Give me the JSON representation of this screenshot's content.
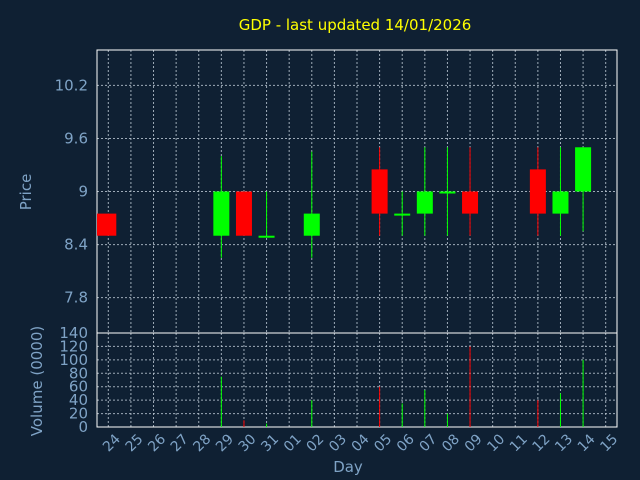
{
  "chart_data": {
    "type": "candlestick",
    "title": "GDP - last updated 14/01/2026",
    "xlabel": "Day",
    "ylabel": "Price",
    "volume_label": "Volume (0000)",
    "days": [
      "24",
      "25",
      "26",
      "27",
      "28",
      "29",
      "30",
      "31",
      "01",
      "02",
      "03",
      "04",
      "05",
      "06",
      "07",
      "08",
      "09",
      "10",
      "11",
      "12",
      "13",
      "14",
      "15"
    ],
    "price_ticks": [
      7.8,
      8.4,
      9,
      9.6,
      10.2
    ],
    "price_tick_labels": [
      "7.8",
      "8.4",
      "9",
      "9.6",
      "10.2"
    ],
    "price_ylim": [
      7.4,
      10.6
    ],
    "volume_ticks": [
      0,
      20,
      40,
      60,
      80,
      100,
      120,
      140
    ],
    "volume_ylim": [
      0,
      140
    ],
    "up_color": "#00ff00",
    "down_color": "#ff0000",
    "candles": [
      {
        "day": "24",
        "open": 8.75,
        "high": 8.75,
        "low": 8.5,
        "close": 8.5,
        "volume": 0
      },
      {
        "day": "29",
        "open": 8.5,
        "high": 9.4,
        "low": 8.25,
        "close": 9.0,
        "volume": 75
      },
      {
        "day": "30",
        "open": 9.0,
        "high": 9.0,
        "low": 8.5,
        "close": 8.5,
        "volume": 10
      },
      {
        "day": "31",
        "open": 8.5,
        "high": 9.0,
        "low": 8.5,
        "close": 8.5,
        "volume": 5
      },
      {
        "day": "02",
        "open": 8.5,
        "high": 9.45,
        "low": 8.25,
        "close": 8.75,
        "volume": 40
      },
      {
        "day": "05",
        "open": 9.25,
        "high": 9.5,
        "low": 8.5,
        "close": 8.75,
        "volume": 60
      },
      {
        "day": "06",
        "open": 8.75,
        "high": 9.0,
        "low": 8.5,
        "close": 8.75,
        "volume": 35
      },
      {
        "day": "07",
        "open": 8.75,
        "high": 9.5,
        "low": 8.5,
        "close": 9.0,
        "volume": 55
      },
      {
        "day": "08",
        "open": 9.0,
        "high": 9.5,
        "low": 8.5,
        "close": 9.0,
        "volume": 20
      },
      {
        "day": "09",
        "open": 9.0,
        "high": 9.5,
        "low": 8.5,
        "close": 8.75,
        "volume": 120
      },
      {
        "day": "12",
        "open": 9.25,
        "high": 9.5,
        "low": 8.5,
        "close": 8.75,
        "volume": 40
      },
      {
        "day": "13",
        "open": 8.75,
        "high": 9.5,
        "low": 8.5,
        "close": 9.0,
        "volume": 50
      },
      {
        "day": "14",
        "open": 9.0,
        "high": 9.5,
        "low": 8.55,
        "close": 9.5,
        "volume": 100
      }
    ]
  }
}
